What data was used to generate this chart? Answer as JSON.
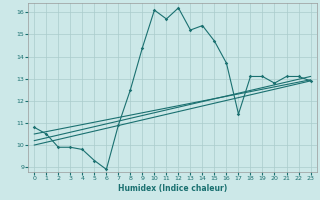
{
  "xlabel": "Humidex (Indice chaleur)",
  "ylabel": "",
  "xlim": [
    -0.5,
    23.5
  ],
  "ylim": [
    8.8,
    16.4
  ],
  "yticks": [
    9,
    10,
    11,
    12,
    13,
    14,
    15,
    16
  ],
  "xticks": [
    0,
    1,
    2,
    3,
    4,
    5,
    6,
    7,
    8,
    9,
    10,
    11,
    12,
    13,
    14,
    15,
    16,
    17,
    18,
    19,
    20,
    21,
    22,
    23
  ],
  "bg_color": "#cce8e8",
  "line_color": "#1a7070",
  "grid_color": "#aacccc",
  "series1_x": [
    0,
    1,
    2,
    3,
    4,
    5,
    6,
    7,
    8,
    9,
    10,
    11,
    12,
    13,
    14,
    15,
    16,
    17,
    18,
    19,
    20,
    21,
    22,
    23
  ],
  "series1_y": [
    10.8,
    10.5,
    9.9,
    9.9,
    9.8,
    9.3,
    8.9,
    10.9,
    12.5,
    14.4,
    16.1,
    15.7,
    16.2,
    15.2,
    15.4,
    14.7,
    13.7,
    11.4,
    13.1,
    13.1,
    12.8,
    13.1,
    13.1,
    12.9
  ],
  "series2_x": [
    0,
    23
  ],
  "series2_y": [
    10.0,
    12.9
  ],
  "series3_x": [
    0,
    23
  ],
  "series3_y": [
    10.5,
    12.95
  ],
  "series4_x": [
    0,
    23
  ],
  "series4_y": [
    10.2,
    13.1
  ]
}
